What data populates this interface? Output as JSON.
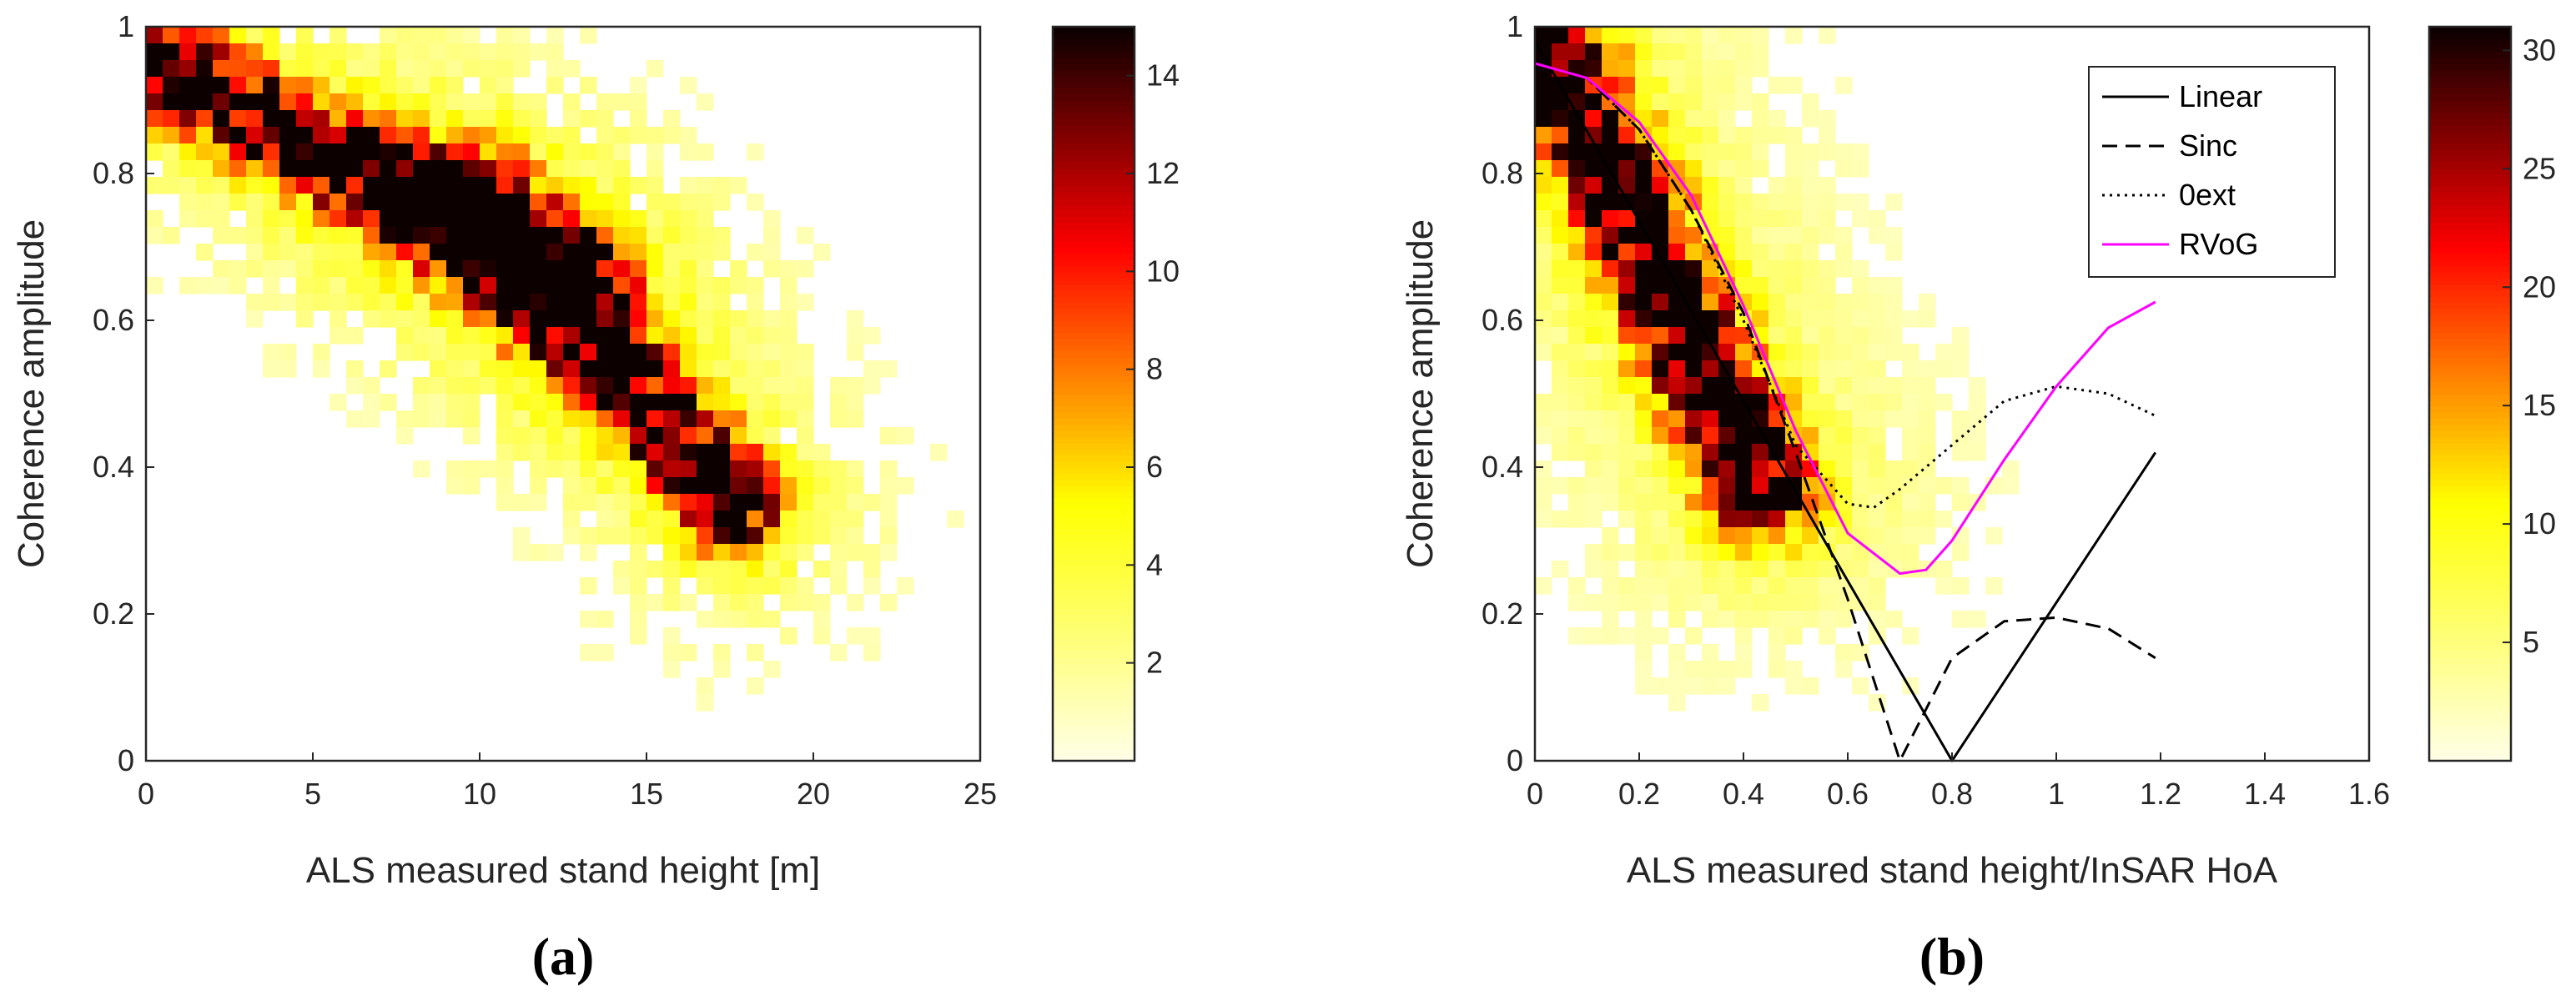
{
  "colors": {
    "magenta": "#ff00ff",
    "axis": "#262626",
    "black": "#000000"
  },
  "chart_data": [
    {
      "type": "heatmap",
      "panel_label": "(a)",
      "xlabel": "ALS measured stand height [m]",
      "ylabel": "Coherence amplitude",
      "xlim": [
        0,
        25
      ],
      "ylim": [
        0,
        1
      ],
      "xticks": [
        "0",
        "5",
        "10",
        "15",
        "20",
        "25"
      ],
      "yticks": [
        "0",
        "0.2",
        "0.4",
        "0.6",
        "0.8",
        "1"
      ],
      "colorbar": {
        "min": 0,
        "max": 15,
        "ticks": [
          "2",
          "4",
          "6",
          "8",
          "10",
          "12",
          "14"
        ]
      },
      "density_ridges": [
        {
          "x0": 1.5,
          "y0": 0.92,
          "x1": 11.5,
          "y1": 0.68,
          "peak": 14
        },
        {
          "x0": 10.5,
          "y0": 0.72,
          "x1": 17,
          "y1": 0.38,
          "peak": 13
        }
      ]
    },
    {
      "type": "heatmap",
      "panel_label": "(b)",
      "xlabel": "ALS measured stand height/InSAR HoA",
      "ylabel": "Coherence amplitude",
      "xlim": [
        0,
        1.6
      ],
      "ylim": [
        0,
        1
      ],
      "xticks": [
        "0",
        "0.2",
        "0.4",
        "0.6",
        "0.8",
        "1",
        "1.2",
        "1.4",
        "1.6"
      ],
      "yticks": [
        "0",
        "0.2",
        "0.4",
        "0.6",
        "0.8",
        "1"
      ],
      "colorbar": {
        "min": 0,
        "max": 31,
        "ticks": [
          "5",
          "10",
          "15",
          "20",
          "25",
          "30"
        ]
      },
      "density_ridges": [
        {
          "x0": 0.05,
          "y0": 0.94,
          "x1": 0.4,
          "y1": 0.42,
          "peak": 31
        }
      ],
      "legend": {
        "placement": "top-right",
        "entries": [
          {
            "label": "Linear",
            "style": "solid",
            "color": "#000000"
          },
          {
            "label": "Sinc",
            "style": "dashed",
            "color": "#000000"
          },
          {
            "label": "0ext",
            "style": "dotted",
            "color": "#000000"
          },
          {
            "label": "RVoG",
            "style": "solid",
            "color": "#ff00ff"
          }
        ]
      },
      "series": [
        {
          "name": "Linear",
          "x": [
            0.0,
            0.8,
            1.19
          ],
          "y": [
            0.98,
            0.0,
            0.42
          ]
        },
        {
          "name": "Sinc",
          "x": [
            0.0,
            0.1,
            0.2,
            0.3,
            0.4,
            0.5,
            0.6,
            0.7,
            0.8,
            0.9,
            1.0,
            1.1,
            1.19
          ],
          "y": [
            0.95,
            0.93,
            0.86,
            0.75,
            0.61,
            0.42,
            0.22,
            0.0,
            0.14,
            0.19,
            0.195,
            0.18,
            0.14
          ]
        },
        {
          "name": "0ext",
          "x": [
            0.0,
            0.1,
            0.2,
            0.3,
            0.4,
            0.5,
            0.6,
            0.65,
            0.7,
            0.8,
            0.9,
            1.0,
            1.1,
            1.19
          ],
          "y": [
            0.95,
            0.93,
            0.86,
            0.75,
            0.6,
            0.43,
            0.35,
            0.345,
            0.37,
            0.43,
            0.49,
            0.51,
            0.5,
            0.47
          ]
        },
        {
          "name": "RVoG",
          "x": [
            0.0,
            0.1,
            0.2,
            0.3,
            0.4,
            0.5,
            0.6,
            0.7,
            0.75,
            0.8,
            0.9,
            1.0,
            1.1,
            1.19
          ],
          "y": [
            0.95,
            0.93,
            0.87,
            0.77,
            0.62,
            0.45,
            0.31,
            0.255,
            0.26,
            0.3,
            0.41,
            0.51,
            0.59,
            0.625
          ]
        }
      ]
    }
  ]
}
